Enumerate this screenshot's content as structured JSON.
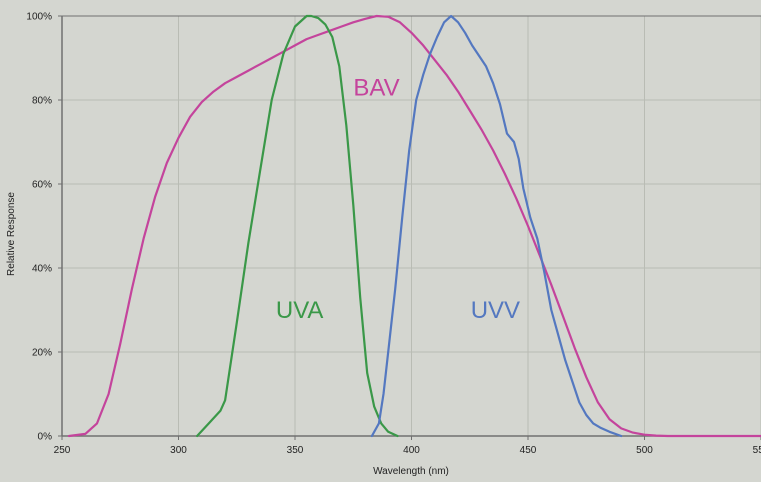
{
  "chart_data": {
    "type": "line",
    "title": "",
    "xlabel": "Wavelength (nm)",
    "ylabel": "Relative Response",
    "xlim": [
      250,
      550
    ],
    "ylim": [
      0,
      100
    ],
    "x_ticks": [
      250,
      300,
      350,
      400,
      450,
      500,
      550
    ],
    "x_tick_labels": [
      "250",
      "300",
      "350",
      "400",
      "450",
      "500",
      "550"
    ],
    "y_ticks": [
      0,
      20,
      40,
      60,
      80,
      100
    ],
    "y_tick_labels": [
      "0%",
      "20%",
      "40%",
      "60%",
      "80%",
      "100%"
    ],
    "grid": true,
    "legend": "none",
    "colors": {
      "background": "#d4d6d0",
      "gridline": "#b9bcb4",
      "axis": "#707070"
    },
    "series": [
      {
        "name": "BAV",
        "color": "#c4449c",
        "label_pos": [
          385,
          83
        ],
        "x": [
          253,
          260,
          265,
          270,
          275,
          280,
          285,
          290,
          295,
          300,
          305,
          310,
          315,
          320,
          325,
          330,
          335,
          340,
          345,
          350,
          355,
          360,
          365,
          370,
          375,
          380,
          385,
          390,
          395,
          400,
          405,
          410,
          415,
          420,
          425,
          430,
          435,
          440,
          445,
          450,
          455,
          460,
          465,
          470,
          475,
          480,
          485,
          490,
          495,
          500,
          505,
          510,
          520,
          530,
          540,
          550
        ],
        "y": [
          0,
          0.5,
          3,
          10,
          22,
          35,
          47,
          57,
          65,
          71,
          76,
          79.5,
          82,
          84,
          85.5,
          87,
          88.5,
          90,
          91.5,
          93,
          94.5,
          95.5,
          96.5,
          97.5,
          98.5,
          99.3,
          100,
          99.8,
          98.5,
          96,
          93,
          89.5,
          86,
          82,
          77.5,
          73,
          68,
          62.5,
          56.5,
          50,
          43,
          36,
          28.5,
          21,
          14,
          8,
          4,
          1.8,
          0.8,
          0.3,
          0.1,
          0,
          0,
          0,
          0,
          0
        ]
      },
      {
        "name": "UVA",
        "color": "#3a9848",
        "label_pos": [
          352,
          30
        ],
        "x": [
          308,
          313,
          318,
          320,
          325,
          330,
          335,
          340,
          345,
          350,
          355,
          357,
          360,
          363,
          366,
          369,
          372,
          375,
          378,
          381,
          384,
          387,
          390,
          394
        ],
        "y": [
          0,
          3,
          6,
          8.5,
          27,
          46,
          63,
          80,
          91,
          97.5,
          100,
          100,
          99.5,
          98,
          95,
          88,
          74,
          55,
          33,
          15,
          7,
          3,
          1,
          0
        ]
      },
      {
        "name": "UVV",
        "color": "#5478c0",
        "label_pos": [
          436,
          30
        ],
        "x": [
          383,
          386,
          388,
          390,
          393,
          396,
          399,
          402,
          405,
          408,
          411,
          414,
          417,
          420,
          423,
          426,
          429,
          432,
          435,
          438,
          441,
          444,
          446,
          448,
          451,
          454,
          457,
          460,
          463,
          466,
          469,
          472,
          475,
          478,
          481,
          485,
          490
        ],
        "y": [
          0,
          3,
          10,
          20,
          35,
          52,
          68,
          80,
          86,
          91,
          95,
          98.5,
          100,
          98.5,
          96,
          93,
          90.5,
          88,
          84,
          79,
          72,
          70,
          66,
          59,
          52,
          47,
          39,
          30,
          24,
          18,
          13,
          8,
          5,
          3,
          2,
          1,
          0
        ]
      }
    ]
  }
}
